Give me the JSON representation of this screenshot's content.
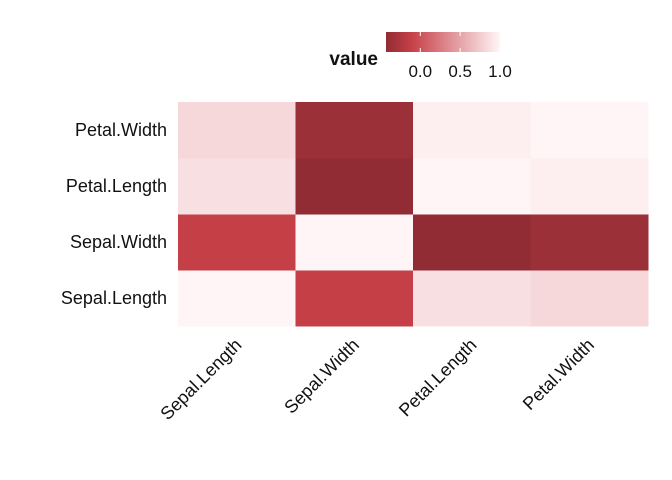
{
  "chart_data": {
    "type": "heatmap",
    "title": "",
    "xlabel": "",
    "ylabel": "",
    "x_categories": [
      "Sepal.Length",
      "Sepal.Width",
      "Petal.Length",
      "Petal.Width"
    ],
    "y_categories": [
      "Sepal.Length",
      "Sepal.Width",
      "Petal.Length",
      "Petal.Width"
    ],
    "values": [
      [
        1.0,
        -0.12,
        0.87,
        0.82
      ],
      [
        -0.12,
        1.0,
        -0.43,
        -0.37
      ],
      [
        0.87,
        -0.43,
        1.0,
        0.96
      ],
      [
        0.82,
        -0.37,
        0.96,
        1.0
      ]
    ],
    "legend": {
      "title": "value",
      "placement": "top",
      "ticks": [
        "0.0",
        "0.5",
        "1.0"
      ],
      "tick_values": [
        0.0,
        0.5,
        1.0
      ],
      "range": [
        -0.43,
        1.0
      ]
    },
    "colors": {
      "low": "#912c34",
      "mid": "#c63f47",
      "high": "#fff5f6"
    },
    "grid": false
  }
}
